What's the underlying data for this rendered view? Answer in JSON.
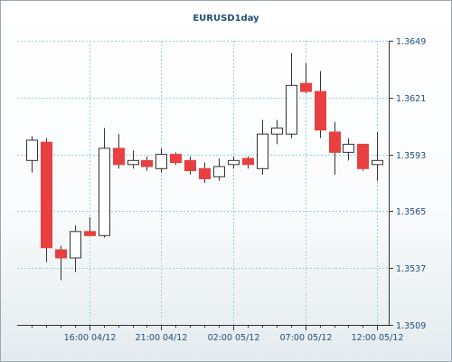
{
  "chart_data": {
    "type": "candlestick",
    "title": "EURUSD1day",
    "colors": {
      "up_fill": "#ffffff",
      "down_fill": "#e84040",
      "outline": "#333333",
      "grid": "#8fd4d8",
      "axis": "#333333",
      "tick_label": "#1f4e79",
      "title": "#1f4e79"
    },
    "y_axis": {
      "position": "right",
      "ylim": [
        1.3509,
        1.3649
      ],
      "ticks": [
        "1.3649",
        "1.3621",
        "1.3593",
        "1.3565",
        "1.3537",
        "1.3509"
      ]
    },
    "x_axis": {
      "ticks": [
        {
          "label": "16:00 04/12",
          "index": 4
        },
        {
          "label": "21:00 04/12",
          "index": 9
        },
        {
          "label": "02:00 05/12",
          "index": 14
        },
        {
          "label": "07:00 05/12",
          "index": 19
        },
        {
          "label": "12:00 05/12",
          "index": 24
        }
      ]
    },
    "grid": true,
    "candles": [
      {
        "open": 1.359,
        "high": 1.3602,
        "low": 1.3584,
        "close": 1.36
      },
      {
        "open": 1.3599,
        "high": 1.3601,
        "low": 1.354,
        "close": 1.3547
      },
      {
        "open": 1.3546,
        "high": 1.3548,
        "low": 1.3531,
        "close": 1.3542
      },
      {
        "open": 1.3542,
        "high": 1.3558,
        "low": 1.3535,
        "close": 1.3555
      },
      {
        "open": 1.3555,
        "high": 1.3562,
        "low": 1.3553,
        "close": 1.3553
      },
      {
        "open": 1.3553,
        "high": 1.3606,
        "low": 1.3552,
        "close": 1.3596
      },
      {
        "open": 1.3596,
        "high": 1.3603,
        "low": 1.3586,
        "close": 1.3588
      },
      {
        "open": 1.3588,
        "high": 1.3595,
        "low": 1.3586,
        "close": 1.359
      },
      {
        "open": 1.359,
        "high": 1.3592,
        "low": 1.3585,
        "close": 1.3587
      },
      {
        "open": 1.3586,
        "high": 1.3596,
        "low": 1.3584,
        "close": 1.3593
      },
      {
        "open": 1.3593,
        "high": 1.3594,
        "low": 1.3588,
        "close": 1.3589
      },
      {
        "open": 1.359,
        "high": 1.3592,
        "low": 1.3583,
        "close": 1.3585
      },
      {
        "open": 1.3586,
        "high": 1.3589,
        "low": 1.3579,
        "close": 1.3581
      },
      {
        "open": 1.3582,
        "high": 1.3591,
        "low": 1.358,
        "close": 1.3587
      },
      {
        "open": 1.3588,
        "high": 1.3592,
        "low": 1.3586,
        "close": 1.359
      },
      {
        "open": 1.3591,
        "high": 1.3592,
        "low": 1.3586,
        "close": 1.3588
      },
      {
        "open": 1.3586,
        "high": 1.361,
        "low": 1.3583,
        "close": 1.3603
      },
      {
        "open": 1.3603,
        "high": 1.361,
        "low": 1.3598,
        "close": 1.3606
      },
      {
        "open": 1.3603,
        "high": 1.3643,
        "low": 1.3601,
        "close": 1.3627
      },
      {
        "open": 1.3628,
        "high": 1.3638,
        "low": 1.3623,
        "close": 1.3624
      },
      {
        "open": 1.3624,
        "high": 1.3634,
        "low": 1.3601,
        "close": 1.3605
      },
      {
        "open": 1.3604,
        "high": 1.3609,
        "low": 1.3583,
        "close": 1.3594
      },
      {
        "open": 1.3594,
        "high": 1.3601,
        "low": 1.359,
        "close": 1.3598
      },
      {
        "open": 1.3598,
        "high": 1.3598,
        "low": 1.3585,
        "close": 1.3586
      },
      {
        "open": 1.3588,
        "high": 1.3604,
        "low": 1.358,
        "close": 1.359
      }
    ]
  }
}
